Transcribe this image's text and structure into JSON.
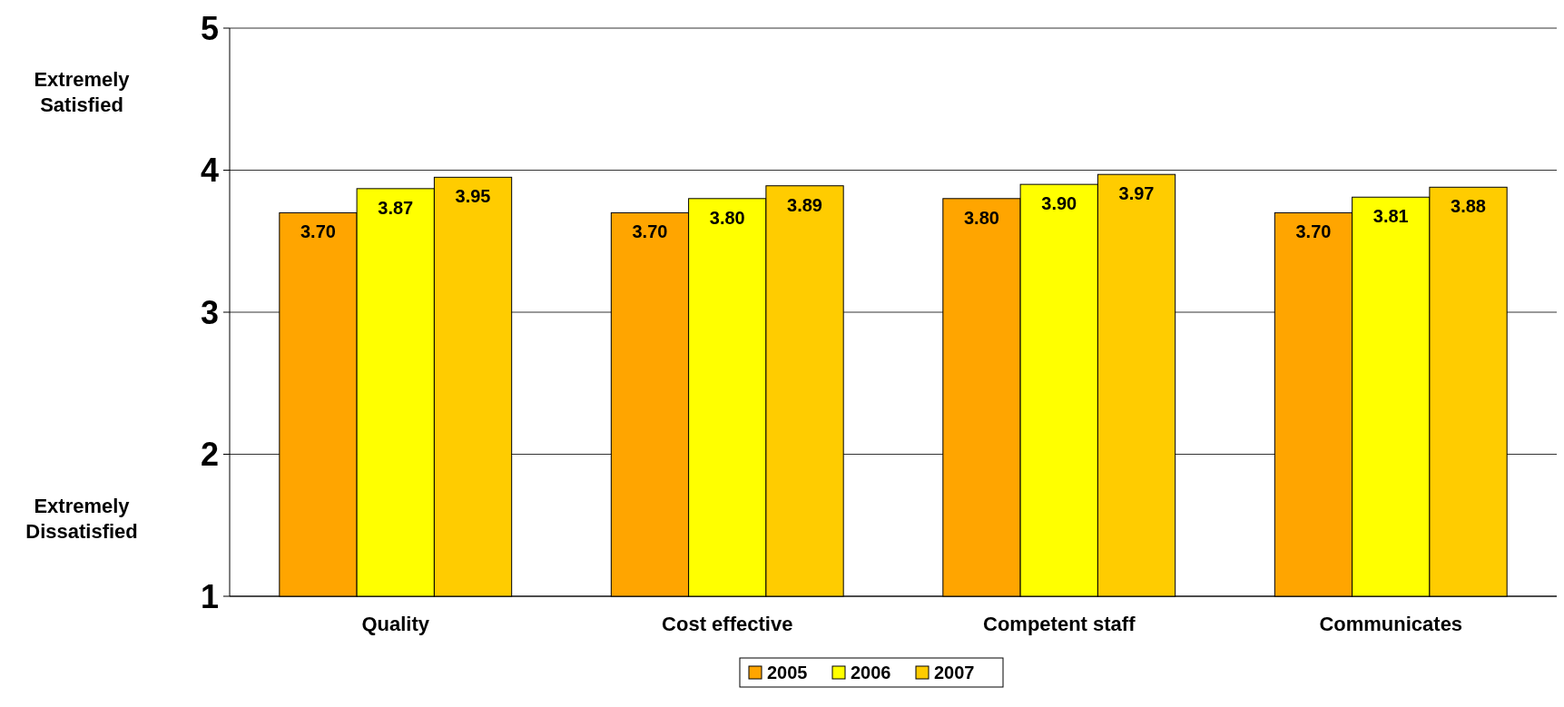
{
  "chart_data": {
    "type": "bar",
    "categories": [
      "Quality",
      "Cost effective",
      "Competent staff",
      "Communicates"
    ],
    "series": [
      {
        "name": "2005",
        "color": "#ffa500",
        "values": [
          3.7,
          3.7,
          3.8,
          3.7
        ],
        "value_labels": [
          "3.70",
          "3.70",
          "3.80",
          "3.70"
        ]
      },
      {
        "name": "2006",
        "color": "#ffff00",
        "values": [
          3.87,
          3.8,
          3.9,
          3.81
        ],
        "value_labels": [
          "3.87",
          "3.80",
          "3.90",
          "3.81"
        ]
      },
      {
        "name": "2007",
        "color": "#ffcc00",
        "values": [
          3.95,
          3.89,
          3.97,
          3.88
        ],
        "value_labels": [
          "3.95",
          "3.89",
          "3.97",
          "3.88"
        ]
      }
    ],
    "ylim": [
      1,
      5
    ],
    "yticks": [
      1,
      2,
      3,
      4,
      5
    ],
    "grid": "y",
    "legend": "bottom",
    "annotations": [
      "Extremely Satisfied",
      "Extremely Dissatisfied"
    ]
  }
}
